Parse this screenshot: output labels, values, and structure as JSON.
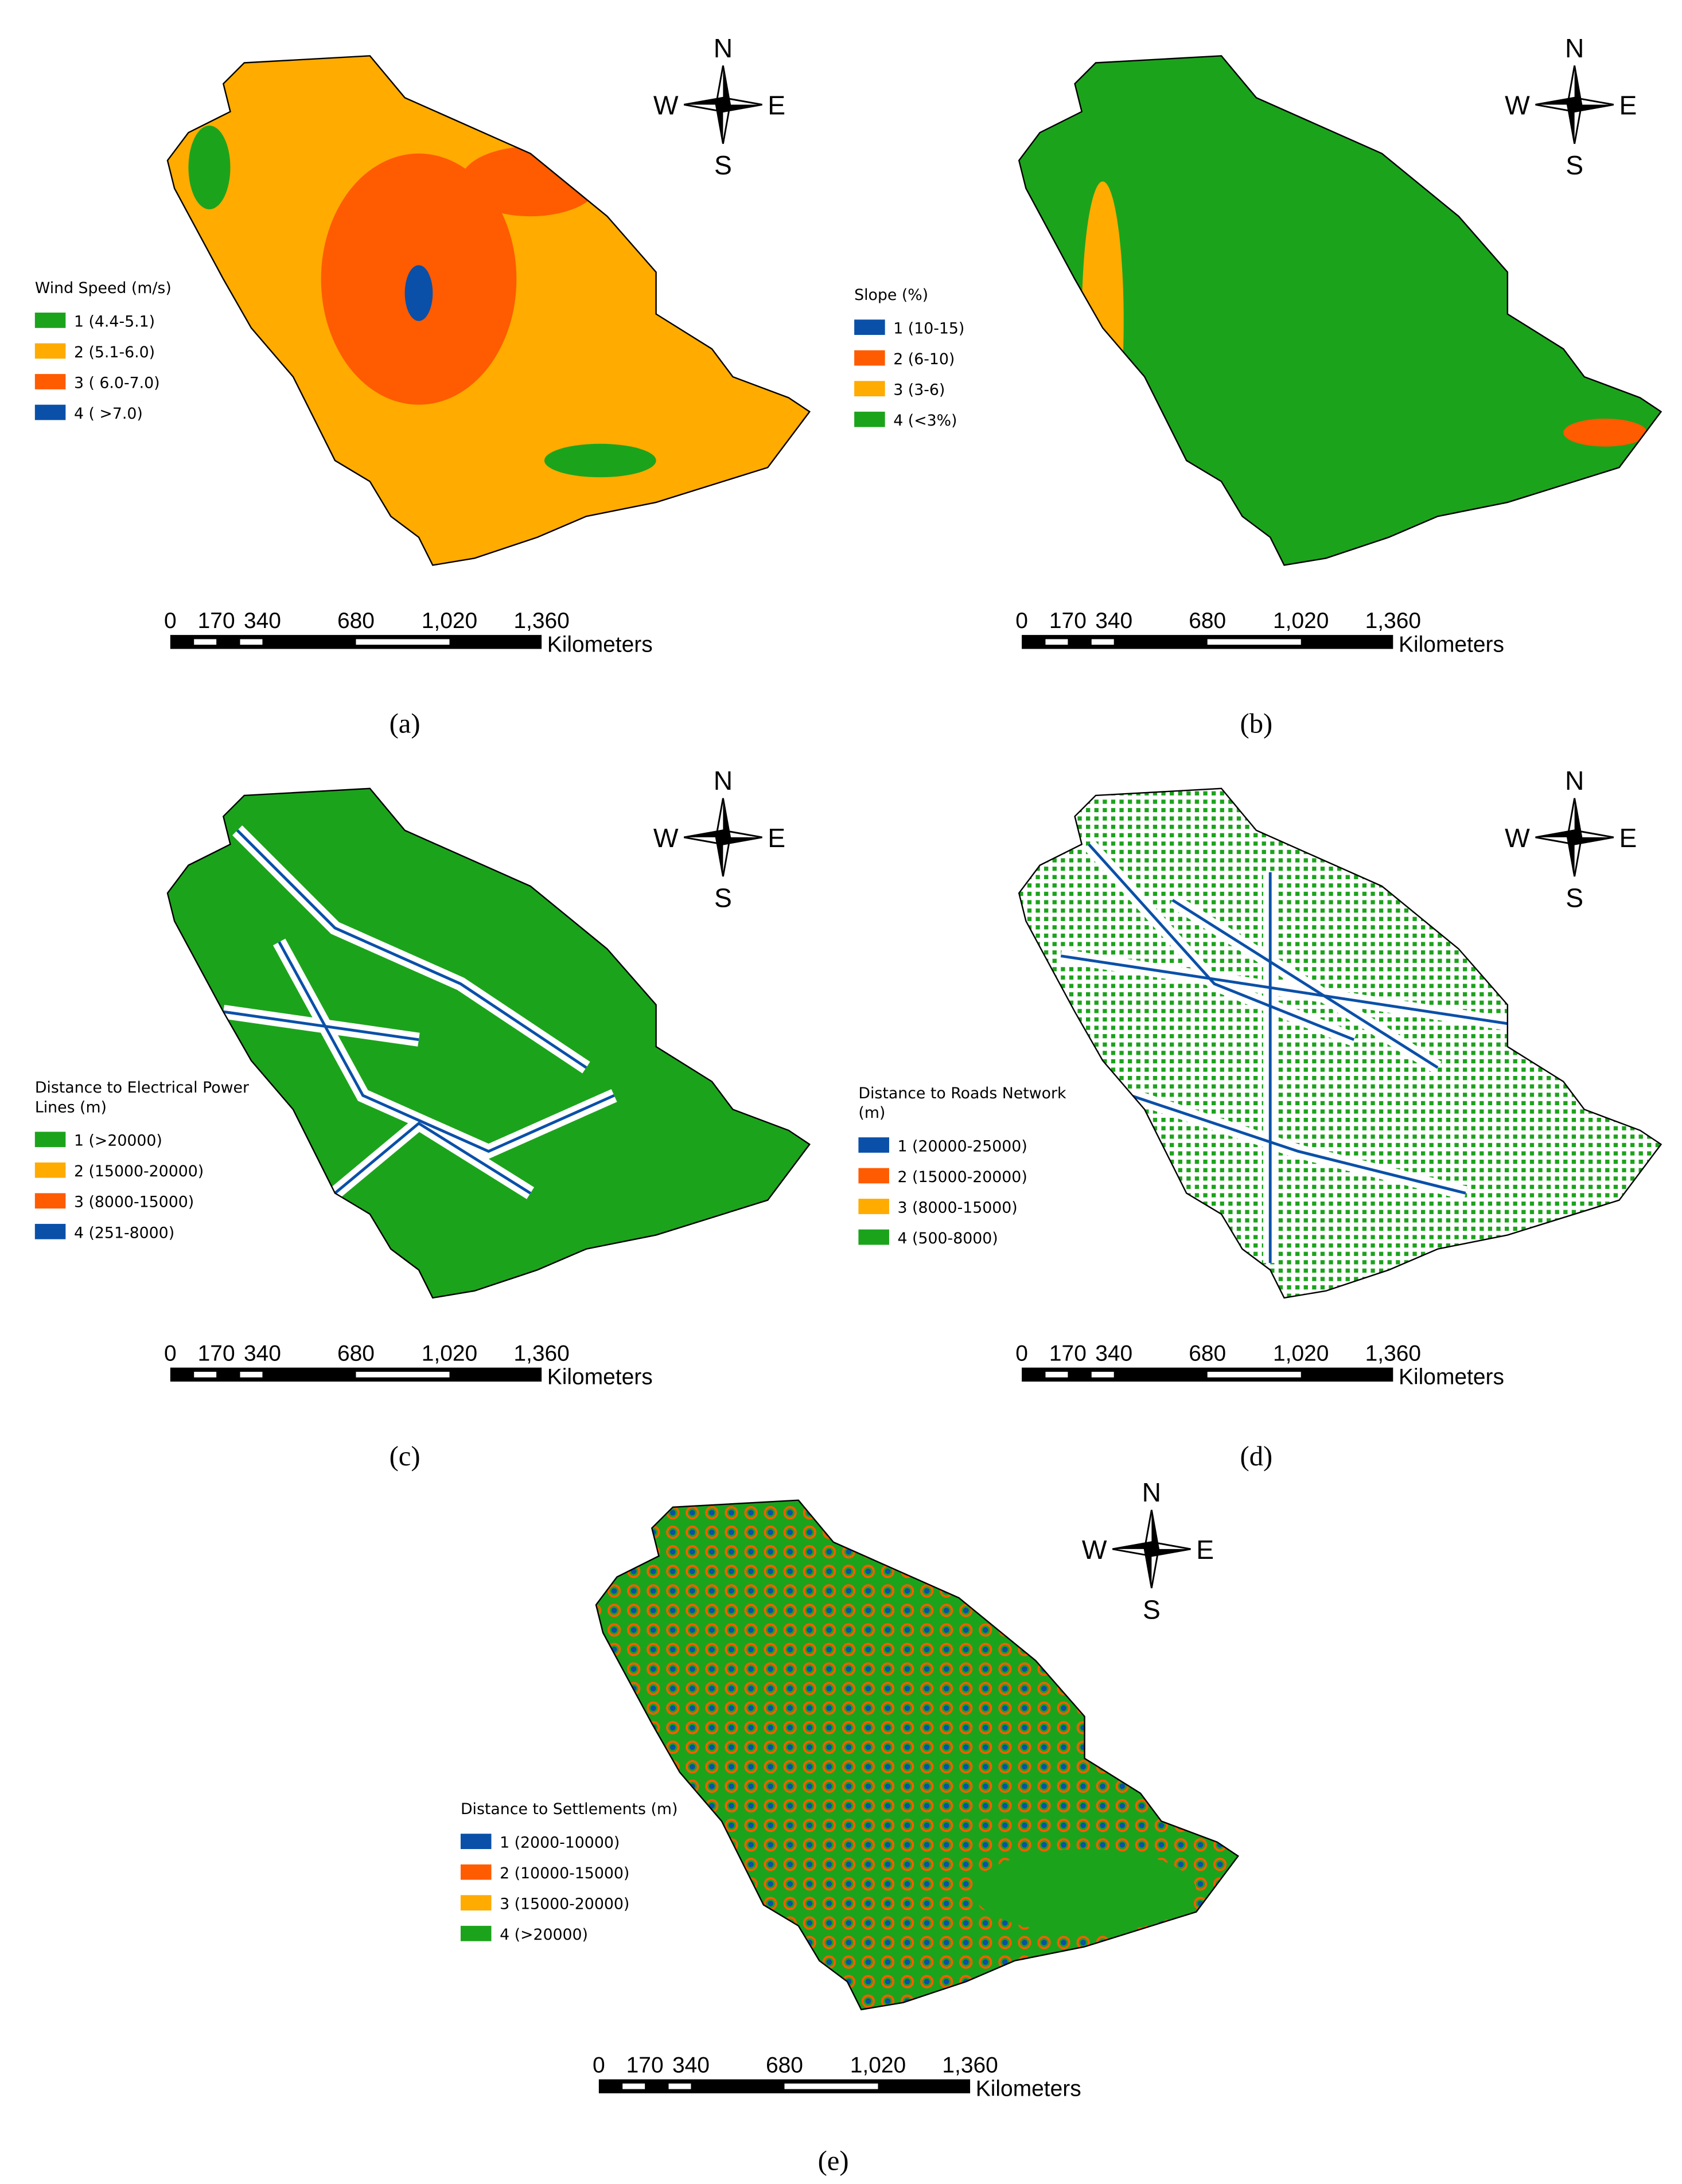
{
  "panels": [
    {
      "caption": "(a)",
      "legend_title": [
        "Wind Speed (m/s)"
      ],
      "legend": [
        {
          "label": "1 (4.4-5.1)",
          "color": "#1ca31c"
        },
        {
          "label": "2 (5.1-6.0)",
          "color": "#ffab00"
        },
        {
          "label": "3 ( 6.0-7.0)",
          "color": "#ff5b00"
        },
        {
          "label": "4 ( >7.0)",
          "color": "#0a50a8"
        }
      ],
      "compass": {
        "n": "N",
        "e": "E",
        "s": "S",
        "w": "W"
      },
      "scale": [
        "0",
        "170",
        "340",
        "680",
        "1,020",
        "1,360"
      ],
      "scale_unit": "Kilometers"
    },
    {
      "caption": "(b)",
      "legend_title": [
        "Slope (%)"
      ],
      "legend": [
        {
          "label": "1 (10-15)",
          "color": "#0a50a8"
        },
        {
          "label": "2 (6-10)",
          "color": "#ff5b00"
        },
        {
          "label": "3 (3-6)",
          "color": "#ffab00"
        },
        {
          "label": "4 (<3%)",
          "color": "#1ca31c"
        }
      ],
      "compass": {
        "n": "N",
        "e": "E",
        "s": "S",
        "w": "W"
      },
      "scale": [
        "0",
        "170",
        "340",
        "680",
        "1,020",
        "1,360"
      ],
      "scale_unit": "Kilometers"
    },
    {
      "caption": "(c)",
      "legend_title": [
        "Distance to Electrical Power",
        "Lines (m)"
      ],
      "legend": [
        {
          "label": "1 (>20000)",
          "color": "#1ca31c"
        },
        {
          "label": "2 (15000-20000)",
          "color": "#ffab00"
        },
        {
          "label": "3 (8000-15000)",
          "color": "#ff5b00"
        },
        {
          "label": "4 (251-8000)",
          "color": "#0a50a8"
        }
      ],
      "compass": {
        "n": "N",
        "e": "E",
        "s": "S",
        "w": "W"
      },
      "scale": [
        "0",
        "170",
        "340",
        "680",
        "1,020",
        "1,360"
      ],
      "scale_unit": "Kilometers"
    },
    {
      "caption": "(d)",
      "legend_title": [
        "Distance to Roads Network",
        "(m)"
      ],
      "legend": [
        {
          "label": "1 (20000-25000)",
          "color": "#0a50a8"
        },
        {
          "label": "2 (15000-20000)",
          "color": "#ff5b00"
        },
        {
          "label": "3 (8000-15000)",
          "color": "#ffab00"
        },
        {
          "label": "4 (500-8000)",
          "color": "#1ca31c"
        }
      ],
      "compass": {
        "n": "N",
        "e": "E",
        "s": "S",
        "w": "W"
      },
      "scale": [
        "0",
        "170",
        "340",
        "680",
        "1,020",
        "1,360"
      ],
      "scale_unit": "Kilometers"
    },
    {
      "caption": "(e)",
      "legend_title": [
        "Distance to Settlements (m)"
      ],
      "legend": [
        {
          "label": "1 (2000-10000)",
          "color": "#0a50a8"
        },
        {
          "label": "2 (10000-15000)",
          "color": "#ff5b00"
        },
        {
          "label": "3 (15000-20000)",
          "color": "#ffab00"
        },
        {
          "label": "4 (>20000)",
          "color": "#1ca31c"
        }
      ],
      "compass": {
        "n": "N",
        "e": "E",
        "s": "S",
        "w": "W"
      },
      "scale": [
        "0",
        "170",
        "340",
        "680",
        "1,020",
        "1,360"
      ],
      "scale_unit": "Kilometers"
    }
  ]
}
